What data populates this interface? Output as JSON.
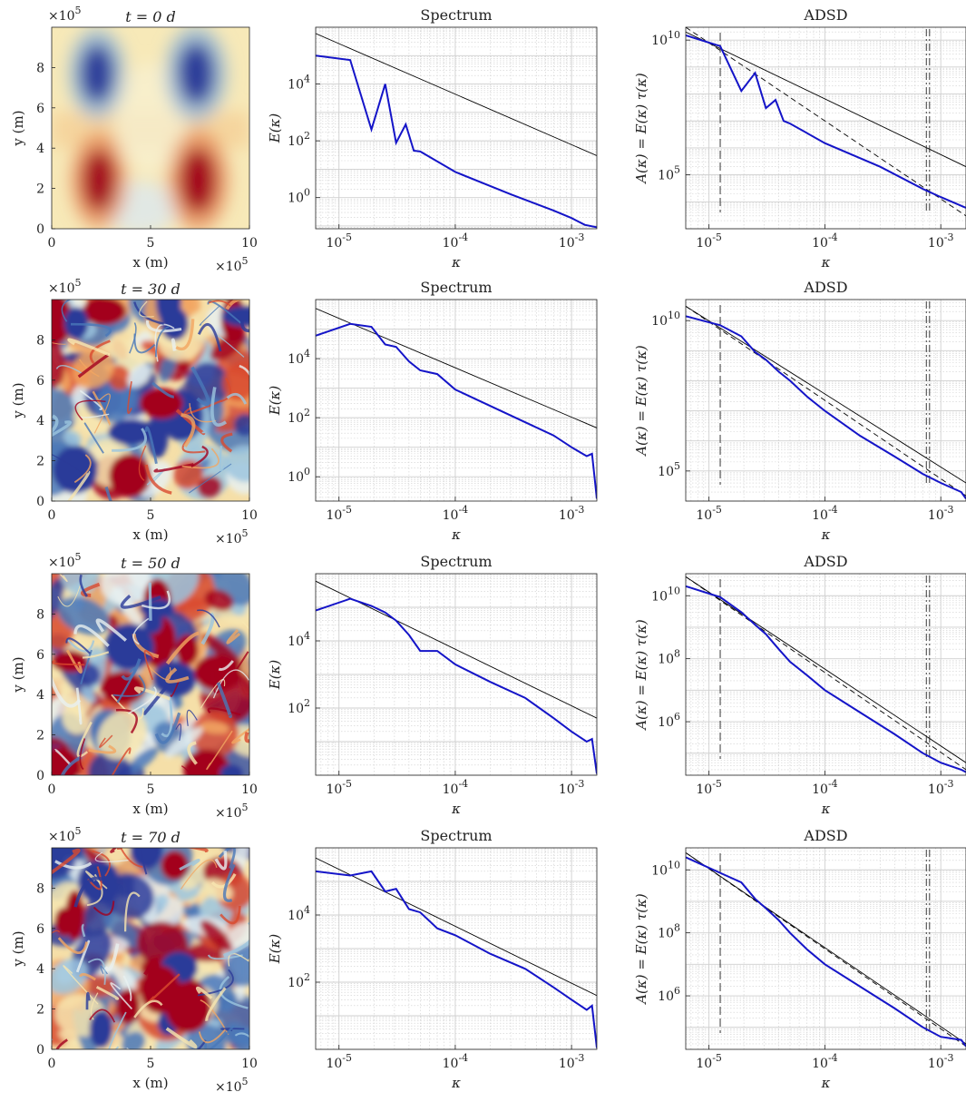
{
  "colors": {
    "series_line": "#1414c8",
    "reference_line": "#000000",
    "grid": "#cfcfcf",
    "colormap": [
      "#2b3b99",
      "#4a78b8",
      "#9cc6df",
      "#e8f0f0",
      "#f7e6b0",
      "#f2a662",
      "#d94a2e",
      "#a3001e"
    ]
  },
  "chart_data": [
    {
      "type": "heatmap",
      "row": 0,
      "title": "t = 0 d",
      "xlabel": "x (m)",
      "ylabel": "y (m)",
      "x_exponent": "×10^5",
      "y_exponent": "×10^5",
      "xticks": [
        "0",
        "5",
        "10"
      ],
      "yticks": [
        "0",
        "2",
        "4",
        "6",
        "8"
      ],
      "xlim": [
        0,
        10
      ],
      "ylim": [
        0,
        10
      ],
      "field_description_blobs": [
        {
          "x": 2.3,
          "y": 7.7,
          "value": -0.9,
          "rx": 1.1,
          "ry": 1.8
        },
        {
          "x": 7.3,
          "y": 7.7,
          "value": -1.0,
          "rx": 1.2,
          "ry": 1.9
        },
        {
          "x": 2.4,
          "y": 2.4,
          "value": 0.9,
          "rx": 1.1,
          "ry": 1.9
        },
        {
          "x": 7.4,
          "y": 2.4,
          "value": 1.0,
          "rx": 1.2,
          "ry": 2.0
        }
      ]
    },
    {
      "type": "line",
      "row": 0,
      "title": "Spectrum",
      "xlabel": "κ",
      "ylabel": "E(κ)",
      "xscale": "log",
      "yscale": "log",
      "xlim": [
        6.3e-06,
        0.00165
      ],
      "ylim": [
        0.08,
        1000000
      ],
      "xticks": [
        "10^-5",
        "10^-4",
        "10^-3"
      ],
      "yticks": [
        "10^0",
        "10^2",
        "10^4"
      ],
      "series": [
        {
          "x": [
            6.3e-06,
            1.25e-05,
            1.9e-05,
            2.5e-05,
            3.1e-05,
            3.75e-05,
            4.4e-05,
            5e-05,
            0.0001,
            0.0003,
            0.0007,
            0.001,
            0.0013,
            0.00165
          ],
          "y": [
            100000,
            70000,
            250,
            10000,
            85,
            380,
            45,
            42,
            8,
            1.3,
            0.35,
            0.19,
            0.11,
            0.09
          ]
        }
      ],
      "reference": {
        "x": [
          6.3e-06,
          0.00165
        ],
        "y": [
          600000,
          30
        ]
      }
    },
    {
      "type": "line",
      "row": 0,
      "title": "ADSD",
      "xlabel": "κ",
      "ylabel": "A(κ) = E(κ) τ(κ)",
      "xscale": "log",
      "yscale": "log",
      "xlim": [
        6.3e-06,
        0.00165
      ],
      "ylim": [
        1000,
        30000000000
      ],
      "xticks": [
        "10^-5",
        "10^-4",
        "10^-3"
      ],
      "yticks": [
        "10^5",
        "10^10"
      ],
      "series": [
        {
          "x": [
            6.3e-06,
            1.25e-05,
            1.9e-05,
            2.5e-05,
            3.1e-05,
            3.75e-05,
            4.4e-05,
            5e-05,
            0.0001,
            0.0003,
            0.0007,
            0.001,
            0.00165
          ],
          "y": [
            15000000000,
            6000000000,
            130000000,
            600000000,
            30000000,
            60000000,
            10000000,
            8000000,
            1500000,
            200000,
            30000,
            15000,
            6000
          ]
        }
      ],
      "reference": {
        "x": [
          6.3e-06,
          0.00165
        ],
        "y": [
          20000000000,
          200000
        ]
      },
      "reference_dashed": {
        "x": [
          6.3e-06,
          0.00165
        ],
        "y": [
          30000000000,
          3000
        ]
      },
      "vlines_dashed": [
        1.25e-05
      ],
      "vlines_dashdot": [
        0.00075,
        0.0008
      ]
    },
    {
      "type": "heatmap",
      "row": 1,
      "title": "t = 30 d",
      "xlabel": "x (m)",
      "ylabel": "y (m)",
      "x_exponent": "×10^5",
      "y_exponent": "×10^5",
      "xticks": [
        "0",
        "5",
        "10"
      ],
      "yticks": [
        "0",
        "2",
        "4",
        "6",
        "8"
      ],
      "xlim": [
        0,
        10
      ],
      "ylim": [
        0,
        10
      ]
    },
    {
      "type": "line",
      "row": 1,
      "title": "Spectrum",
      "xlabel": "κ",
      "ylabel": "E(κ)",
      "xscale": "log",
      "yscale": "log",
      "xlim": [
        6.3e-06,
        0.00165
      ],
      "ylim": [
        0.15,
        1000000
      ],
      "xticks": [
        "10^-5",
        "10^-4",
        "10^-3"
      ],
      "yticks": [
        "10^0",
        "10^2",
        "10^4"
      ],
      "series": [
        {
          "x": [
            6.3e-06,
            1.25e-05,
            1.9e-05,
            2.5e-05,
            3.1e-05,
            4e-05,
            5e-05,
            7e-05,
            0.0001,
            0.0002,
            0.0004,
            0.0007,
            0.001,
            0.00135,
            0.0015,
            0.00165
          ],
          "y": [
            60000,
            150000,
            120000,
            30000,
            25000,
            8000,
            4000,
            3000,
            900,
            250,
            70,
            25,
            10,
            5,
            6,
            0.18
          ]
        }
      ],
      "reference": {
        "x": [
          6.3e-06,
          0.00165
        ],
        "y": [
          500000,
          45
        ]
      }
    },
    {
      "type": "line",
      "row": 1,
      "title": "ADSD",
      "xlabel": "κ",
      "ylabel": "A(κ) = E(κ) τ(κ)",
      "xscale": "log",
      "yscale": "log",
      "xlim": [
        6.3e-06,
        0.00165
      ],
      "ylim": [
        10000,
        50000000000
      ],
      "xticks": [
        "10^-5",
        "10^-4",
        "10^-3"
      ],
      "yticks": [
        "10^5",
        "10^10"
      ],
      "series": [
        {
          "x": [
            6.3e-06,
            1.25e-05,
            1.9e-05,
            2.5e-05,
            3.1e-05,
            4e-05,
            5e-05,
            7e-05,
            0.0001,
            0.0002,
            0.0004,
            0.0007,
            0.001,
            0.0015,
            0.00165
          ],
          "y": [
            14000000000,
            7000000000,
            3000000000,
            900000000,
            500000000,
            200000000,
            100000000,
            30000000,
            10000000,
            1500000,
            300000,
            80000,
            40000,
            20000,
            12000
          ]
        }
      ],
      "reference": {
        "x": [
          6.3e-06,
          0.00165
        ],
        "y": [
          30000000000,
          40000
        ]
      },
      "reference_dashed": {
        "x": [
          6.3e-06,
          0.00165
        ],
        "y": [
          30000000000,
          15000
        ]
      },
      "vlines_dashed": [
        1.25e-05
      ],
      "vlines_dashdot": [
        0.00075,
        0.0008
      ]
    },
    {
      "type": "heatmap",
      "row": 2,
      "title": "t = 50 d",
      "xlabel": "x (m)",
      "ylabel": "y (m)",
      "x_exponent": "×10^5",
      "y_exponent": "×10^5",
      "xticks": [
        "0",
        "5",
        "10"
      ],
      "yticks": [
        "0",
        "2",
        "4",
        "6",
        "8"
      ],
      "xlim": [
        0,
        10
      ],
      "ylim": [
        0,
        10
      ]
    },
    {
      "type": "line",
      "row": 2,
      "title": "Spectrum",
      "xlabel": "κ",
      "ylabel": "E(κ)",
      "xscale": "log",
      "yscale": "log",
      "xlim": [
        6.3e-06,
        0.00165
      ],
      "ylim": [
        1,
        1000000
      ],
      "xticks": [
        "10^-5",
        "10^-4",
        "10^-3"
      ],
      "yticks": [
        "10^2",
        "10^4"
      ],
      "series": [
        {
          "x": [
            6.3e-06,
            1.25e-05,
            1.9e-05,
            2.5e-05,
            3.1e-05,
            4e-05,
            5e-05,
            7e-05,
            0.0001,
            0.0002,
            0.0004,
            0.0007,
            0.001,
            0.00135,
            0.0015,
            0.00165
          ],
          "y": [
            80000,
            180000,
            110000,
            70000,
            40000,
            15000,
            5000,
            5000,
            2000,
            600,
            200,
            50,
            20,
            10,
            12,
            1.1
          ]
        }
      ],
      "reference": {
        "x": [
          6.3e-06,
          0.00165
        ],
        "y": [
          600000,
          50
        ]
      }
    },
    {
      "type": "line",
      "row": 2,
      "title": "ADSD",
      "xlabel": "κ",
      "ylabel": "A(κ) = E(κ) τ(κ)",
      "xscale": "log",
      "yscale": "log",
      "xlim": [
        6.3e-06,
        0.00165
      ],
      "ylim": [
        20000,
        50000000000
      ],
      "xticks": [
        "10^-5",
        "10^-4",
        "10^-3"
      ],
      "yticks": [
        "10^6",
        "10^8",
        "10^10"
      ],
      "series": [
        {
          "x": [
            6.3e-06,
            1.25e-05,
            1.9e-05,
            2.5e-05,
            3.1e-05,
            4e-05,
            5e-05,
            7e-05,
            0.0001,
            0.0002,
            0.0004,
            0.0007,
            0.001,
            0.0015,
            0.00165
          ],
          "y": [
            20000000000,
            9000000000,
            3000000000,
            1200000000,
            600000000,
            200000000,
            80000000,
            30000000,
            10000000,
            2000000,
            400000,
            100000,
            50000,
            30000,
            25000
          ]
        }
      ],
      "reference": {
        "x": [
          6.3e-06,
          0.00165
        ],
        "y": [
          40000000000,
          50000
        ]
      },
      "reference_dashed": {
        "x": [
          6.3e-06,
          0.00165
        ],
        "y": [
          40000000000,
          30000
        ]
      },
      "vlines_dashed": [
        1.25e-05
      ],
      "vlines_dashdot": [
        0.00075,
        0.0008
      ]
    },
    {
      "type": "heatmap",
      "row": 3,
      "title": "t = 70 d",
      "xlabel": "x (m)",
      "ylabel": "y (m)",
      "x_exponent": "×10^5",
      "y_exponent": "×10^5",
      "xticks": [
        "0",
        "5",
        "10"
      ],
      "yticks": [
        "0",
        "2",
        "4",
        "6",
        "8"
      ],
      "xlim": [
        0,
        10
      ],
      "ylim": [
        0,
        10
      ]
    },
    {
      "type": "line",
      "row": 3,
      "title": "Spectrum",
      "xlabel": "κ",
      "ylabel": "E(κ)",
      "xscale": "log",
      "yscale": "log",
      "xlim": [
        6.3e-06,
        0.00165
      ],
      "ylim": [
        1,
        1000000
      ],
      "xticks": [
        "10^-5",
        "10^-4",
        "10^-3"
      ],
      "yticks": [
        "10^2",
        "10^4"
      ],
      "series": [
        {
          "x": [
            6.3e-06,
            1.25e-05,
            1.9e-05,
            2.5e-05,
            3.1e-05,
            4e-05,
            5e-05,
            7e-05,
            0.0001,
            0.0002,
            0.0004,
            0.0007,
            0.001,
            0.00135,
            0.0015,
            0.00165
          ],
          "y": [
            200000,
            150000,
            200000,
            50000,
            60000,
            15000,
            12000,
            4000,
            2500,
            700,
            250,
            70,
            30,
            15,
            20,
            1.1
          ]
        }
      ],
      "reference": {
        "x": [
          6.3e-06,
          0.00165
        ],
        "y": [
          500000,
          40
        ]
      }
    },
    {
      "type": "line",
      "row": 3,
      "title": "ADSD",
      "xlabel": "κ",
      "ylabel": "A(κ) = E(κ) τ(κ)",
      "xscale": "log",
      "yscale": "log",
      "xlim": [
        6.3e-06,
        0.00165
      ],
      "ylim": [
        20000,
        50000000000
      ],
      "xticks": [
        "10^-5",
        "10^-4",
        "10^-3"
      ],
      "yticks": [
        "10^6",
        "10^8",
        "10^10"
      ],
      "series": [
        {
          "x": [
            6.3e-06,
            1.25e-05,
            1.9e-05,
            2.5e-05,
            3.1e-05,
            4e-05,
            5e-05,
            7e-05,
            0.0001,
            0.0002,
            0.0004,
            0.0007,
            0.001,
            0.0015,
            0.00165
          ],
          "y": [
            25000000000,
            8000000000,
            4000000000,
            1200000000,
            600000000,
            250000000,
            100000000,
            30000000,
            10000000,
            2000000,
            400000,
            100000,
            50000,
            40000,
            25000
          ]
        }
      ],
      "reference": {
        "x": [
          6.3e-06,
          0.00165
        ],
        "y": [
          35000000000,
          30000
        ]
      },
      "reference_dashed": {
        "x": [
          6.3e-06,
          0.00165
        ],
        "y": [
          35000000000,
          25000
        ]
      },
      "vlines_dashed": [
        1.25e-05
      ],
      "vlines_dashdot": [
        0.00075,
        0.0008
      ]
    }
  ]
}
